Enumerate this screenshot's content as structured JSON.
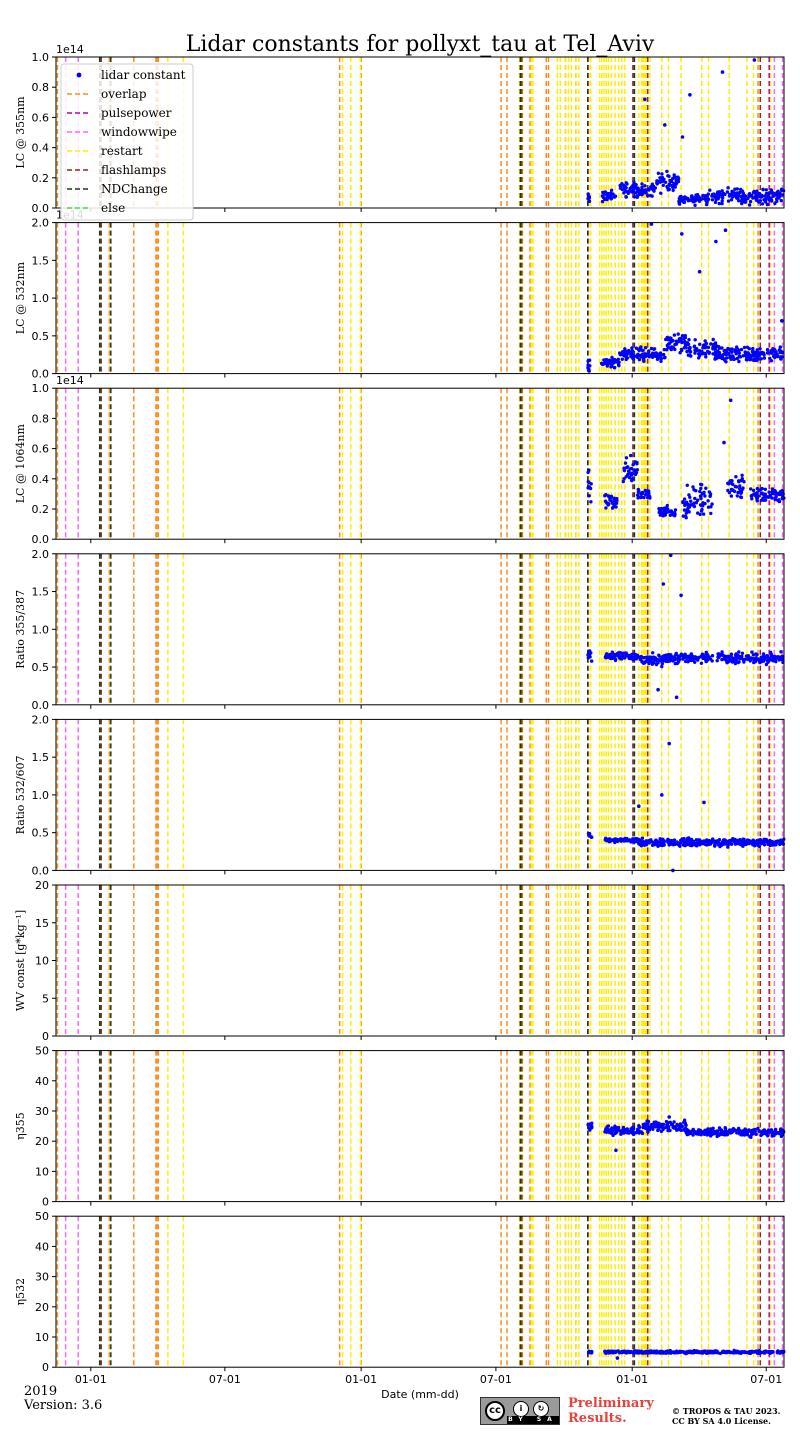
{
  "figure": {
    "title": "Lidar constants for pollyxt_tau at Tel_Aviv",
    "xlabel": "Date (mm-dd)",
    "year_label": "2019",
    "version_label": "Version: 3.6",
    "preliminary_label": "Preliminary Results.",
    "copyright_label": "© TROPOS & TAU 2023. CC BY SA 4.0 License.",
    "license_badge": {
      "top": "cc",
      "by": "BY",
      "sa": "SA"
    }
  },
  "colors": {
    "data": "#0000ff",
    "overlap": "#ff8c1a",
    "pulsepower": "#b000b0",
    "windowwipe": "#ff66ff",
    "restart": "#ffee00",
    "flashlamps": "#8b2a1a",
    "NDChange": "#1a3a1a",
    "else": "#33dd33"
  },
  "chart_data": {
    "type": "scatter",
    "x_axis": {
      "type": "date",
      "range": [
        "2018-11-15",
        "2021-07-25"
      ],
      "tick_dates": [
        "2019-01-01",
        "2019-07-01",
        "2020-01-01",
        "2020-07-01",
        "2021-01-01",
        "2021-07-01"
      ],
      "tick_labels": [
        "01-01",
        "07-01",
        "01-01",
        "07-01",
        "01-01",
        "07-01"
      ]
    },
    "legend": {
      "location": "upper left of first panel",
      "entries": [
        {
          "label": "lidar constant",
          "style": "dot",
          "color": "#0000ff"
        },
        {
          "label": "overlap",
          "style": "dash",
          "color": "#ff8c1a"
        },
        {
          "label": "pulsepower",
          "style": "dash",
          "color": "#b000b0"
        },
        {
          "label": "windowwipe",
          "style": "dash",
          "color": "#ff66ff"
        },
        {
          "label": "restart",
          "style": "dash",
          "color": "#ffee00"
        },
        {
          "label": "flashlamps",
          "style": "dash",
          "color": "#8b2a1a"
        },
        {
          "label": "NDChange",
          "style": "dash",
          "color": "#1a3a1a"
        },
        {
          "label": "else",
          "style": "dash",
          "color": "#33dd33"
        }
      ]
    },
    "events": {
      "overlap": [
        "2018-11-17",
        "2019-01-26",
        "2019-02-28",
        "2019-03-30",
        "2019-03-31",
        "2019-04-02",
        "2019-12-03",
        "2020-01-01",
        "2020-07-08",
        "2020-07-16",
        "2020-08-16",
        "2020-09-07",
        "2020-09-10",
        "2020-10-03",
        "2020-10-17",
        "2020-11-03",
        "2021-01-19",
        "2021-06-20"
      ],
      "pulsepower": [
        "2021-07-05"
      ],
      "windowwipe": [
        "2018-11-28",
        "2018-12-15",
        "2021-07-12",
        "2021-07-23"
      ],
      "restart": [
        "2019-04-15",
        "2019-05-06",
        "2019-12-07",
        "2019-12-18",
        "2019-12-31",
        "2020-08-02",
        "2020-08-06",
        "2020-08-18",
        "2020-08-20",
        "2020-09-22",
        "2020-09-26",
        "2020-10-03",
        "2020-10-07",
        "2020-10-11",
        "2020-10-17",
        "2020-10-21",
        "2020-11-06",
        "2020-11-18",
        "2020-11-21",
        "2020-11-24",
        "2020-11-27",
        "2020-11-30",
        "2020-12-04",
        "2020-12-09",
        "2020-12-14",
        "2020-12-18",
        "2020-12-22",
        "2021-01-10",
        "2021-01-14",
        "2021-01-16",
        "2021-01-18",
        "2021-01-20",
        "2021-01-22",
        "2021-01-25",
        "2021-02-10",
        "2021-02-19",
        "2021-03-08",
        "2021-04-05",
        "2021-04-14",
        "2021-05-12",
        "2021-06-05",
        "2021-06-14",
        "2021-07-07"
      ],
      "flashlamps": [
        "2019-01-15",
        "2020-08-05",
        "2021-01-02",
        "2021-01-22",
        "2021-06-23"
      ],
      "NDChange": [
        "2019-01-13",
        "2019-01-28",
        "2020-08-03",
        "2020-11-02",
        "2021-01-04"
      ],
      "else": []
    },
    "panels": [
      {
        "ylabel": "LC @ 355nm",
        "offset_label": "1e14",
        "ylim": [
          0,
          1.0
        ],
        "yticks": [
          0.0,
          0.2,
          0.4,
          0.6,
          0.8,
          1.0
        ],
        "tick_format": "0.0",
        "series": {
          "marker": "dot",
          "segments": [
            {
              "start": "2020-11-02",
              "end": "2020-11-05",
              "center": 0.06,
              "spread": 0.05
            },
            {
              "start": "2020-11-20",
              "end": "2020-12-10",
              "center": 0.08,
              "spread": 0.05
            },
            {
              "start": "2020-12-15",
              "end": "2021-01-15",
              "center": 0.12,
              "spread": 0.07
            },
            {
              "start": "2021-01-15",
              "end": "2021-01-31",
              "center": 0.12,
              "spread": 0.06
            },
            {
              "start": "2021-02-01",
              "end": "2021-03-05",
              "center": 0.17,
              "spread": 0.09
            },
            {
              "start": "2021-03-05",
              "end": "2021-04-15",
              "center": 0.06,
              "spread": 0.05
            },
            {
              "start": "2021-04-15",
              "end": "2021-07-25",
              "center": 0.08,
              "spread": 0.07
            }
          ],
          "outliers": [
            {
              "x": "2021-01-18",
              "y": 0.72
            },
            {
              "x": "2021-03-20",
              "y": 0.75
            },
            {
              "x": "2021-05-03",
              "y": 0.9
            },
            {
              "x": "2021-02-14",
              "y": 0.55
            },
            {
              "x": "2021-03-10",
              "y": 0.47
            },
            {
              "x": "2021-06-15",
              "y": 0.98
            }
          ]
        }
      },
      {
        "ylabel": "LC @ 532nm",
        "offset_label": "1e14",
        "ylim": [
          0,
          2.0
        ],
        "yticks": [
          0.0,
          0.5,
          1.0,
          1.5,
          2.0
        ],
        "tick_format": "0.0",
        "series": {
          "marker": "dot",
          "segments": [
            {
              "start": "2020-11-02",
              "end": "2020-11-05",
              "center": 0.1,
              "spread": 0.1
            },
            {
              "start": "2020-11-20",
              "end": "2020-12-15",
              "center": 0.15,
              "spread": 0.1
            },
            {
              "start": "2020-12-15",
              "end": "2021-02-15",
              "center": 0.25,
              "spread": 0.12
            },
            {
              "start": "2021-02-15",
              "end": "2021-03-15",
              "center": 0.4,
              "spread": 0.2
            },
            {
              "start": "2021-03-15",
              "end": "2021-04-30",
              "center": 0.3,
              "spread": 0.2
            },
            {
              "start": "2021-04-30",
              "end": "2021-07-25",
              "center": 0.25,
              "spread": 0.15
            }
          ],
          "outliers": [
            {
              "x": "2021-01-27",
              "y": 1.98
            },
            {
              "x": "2021-03-09",
              "y": 1.85
            },
            {
              "x": "2021-05-07",
              "y": 1.9
            },
            {
              "x": "2021-04-02",
              "y": 1.35
            },
            {
              "x": "2021-04-24",
              "y": 1.75
            },
            {
              "x": "2021-07-22",
              "y": 0.7
            }
          ]
        }
      },
      {
        "ylabel": "LC @ 1064nm",
        "offset_label": "1e14",
        "ylim": [
          0,
          1.0
        ],
        "yticks": [
          0.0,
          0.2,
          0.4,
          0.6,
          0.8,
          1.0
        ],
        "tick_format": "0.0",
        "series": {
          "marker": "dot",
          "segments": [
            {
              "start": "2020-11-02",
              "end": "2020-11-08",
              "center": 0.35,
              "spread": 0.15
            },
            {
              "start": "2020-11-25",
              "end": "2020-12-12",
              "center": 0.25,
              "spread": 0.08
            },
            {
              "start": "2020-12-20",
              "end": "2021-01-08",
              "center": 0.45,
              "spread": 0.12
            },
            {
              "start": "2021-01-08",
              "end": "2021-01-25",
              "center": 0.3,
              "spread": 0.08
            },
            {
              "start": "2021-02-05",
              "end": "2021-03-01",
              "center": 0.18,
              "spread": 0.05
            },
            {
              "start": "2021-03-10",
              "end": "2021-04-20",
              "center": 0.25,
              "spread": 0.15
            },
            {
              "start": "2021-05-10",
              "end": "2021-06-01",
              "center": 0.35,
              "spread": 0.12
            },
            {
              "start": "2021-06-10",
              "end": "2021-07-25",
              "center": 0.3,
              "spread": 0.08
            }
          ],
          "outliers": [
            {
              "x": "2021-05-14",
              "y": 0.92
            },
            {
              "x": "2021-05-05",
              "y": 0.64
            }
          ]
        }
      },
      {
        "ylabel": "Ratio 355/387",
        "offset_label": "",
        "ylim": [
          0,
          2.0
        ],
        "yticks": [
          0.0,
          0.5,
          1.0,
          1.5,
          2.0
        ],
        "tick_format": "0.0",
        "series": {
          "marker": "dot",
          "segments": [
            {
              "start": "2020-11-02",
              "end": "2020-11-08",
              "center": 0.65,
              "spread": 0.1
            },
            {
              "start": "2020-11-25",
              "end": "2021-01-10",
              "center": 0.64,
              "spread": 0.08
            },
            {
              "start": "2021-01-10",
              "end": "2021-02-15",
              "center": 0.6,
              "spread": 0.12
            },
            {
              "start": "2021-02-15",
              "end": "2021-07-25",
              "center": 0.62,
              "spread": 0.1
            }
          ],
          "outliers": [
            {
              "x": "2021-02-22",
              "y": 1.98
            },
            {
              "x": "2021-03-08",
              "y": 1.45
            },
            {
              "x": "2021-02-12",
              "y": 1.6
            },
            {
              "x": "2021-02-05",
              "y": 0.2
            },
            {
              "x": "2021-03-02",
              "y": 0.1
            }
          ]
        }
      },
      {
        "ylabel": "Ratio 532/607",
        "offset_label": "",
        "ylim": [
          0,
          2.0
        ],
        "yticks": [
          0.0,
          0.5,
          1.0,
          1.5,
          2.0
        ],
        "tick_format": "0.0",
        "series": {
          "marker": "dot",
          "segments": [
            {
              "start": "2020-11-02",
              "end": "2020-11-08",
              "center": 0.45,
              "spread": 0.05
            },
            {
              "start": "2020-11-25",
              "end": "2021-01-10",
              "center": 0.4,
              "spread": 0.04
            },
            {
              "start": "2021-01-10",
              "end": "2021-07-25",
              "center": 0.37,
              "spread": 0.07
            }
          ],
          "outliers": [
            {
              "x": "2021-02-20",
              "y": 1.68
            },
            {
              "x": "2021-02-10",
              "y": 1.0
            },
            {
              "x": "2021-04-08",
              "y": 0.9
            },
            {
              "x": "2021-01-10",
              "y": 0.85
            },
            {
              "x": "2021-02-25",
              "y": 0.0
            }
          ]
        }
      },
      {
        "ylabel": "WV const [g*kg⁻¹]",
        "offset_label": "",
        "ylim": [
          0,
          20
        ],
        "yticks": [
          0,
          5,
          10,
          15,
          20
        ],
        "tick_format": "0",
        "series": {
          "marker": "dot",
          "segments": [],
          "outliers": []
        }
      },
      {
        "ylabel": "η355",
        "offset_label": "",
        "ylim": [
          0,
          50
        ],
        "yticks": [
          0,
          10,
          20,
          30,
          40,
          50
        ],
        "tick_format": "0",
        "series": {
          "marker": "dot",
          "segments": [
            {
              "start": "2020-11-02",
              "end": "2020-11-08",
              "center": 25,
              "spread": 2
            },
            {
              "start": "2020-11-25",
              "end": "2021-01-15",
              "center": 23.5,
              "spread": 2
            },
            {
              "start": "2021-01-15",
              "end": "2021-03-15",
              "center": 25,
              "spread": 2.5
            },
            {
              "start": "2021-03-15",
              "end": "2021-07-25",
              "center": 23,
              "spread": 2
            }
          ],
          "outliers": [
            {
              "x": "2020-12-10",
              "y": 17
            },
            {
              "x": "2021-02-20",
              "y": 28
            }
          ]
        }
      },
      {
        "ylabel": "η532",
        "offset_label": "",
        "ylim": [
          0,
          50
        ],
        "yticks": [
          0,
          10,
          20,
          30,
          40,
          50
        ],
        "tick_format": "0",
        "series": {
          "marker": "dot",
          "segments": [
            {
              "start": "2020-11-02",
              "end": "2020-11-08",
              "center": 5,
              "spread": 0.6
            },
            {
              "start": "2020-11-25",
              "end": "2021-07-25",
              "center": 5,
              "spread": 0.6
            }
          ],
          "outliers": [
            {
              "x": "2020-12-12",
              "y": 3
            }
          ]
        }
      }
    ]
  }
}
